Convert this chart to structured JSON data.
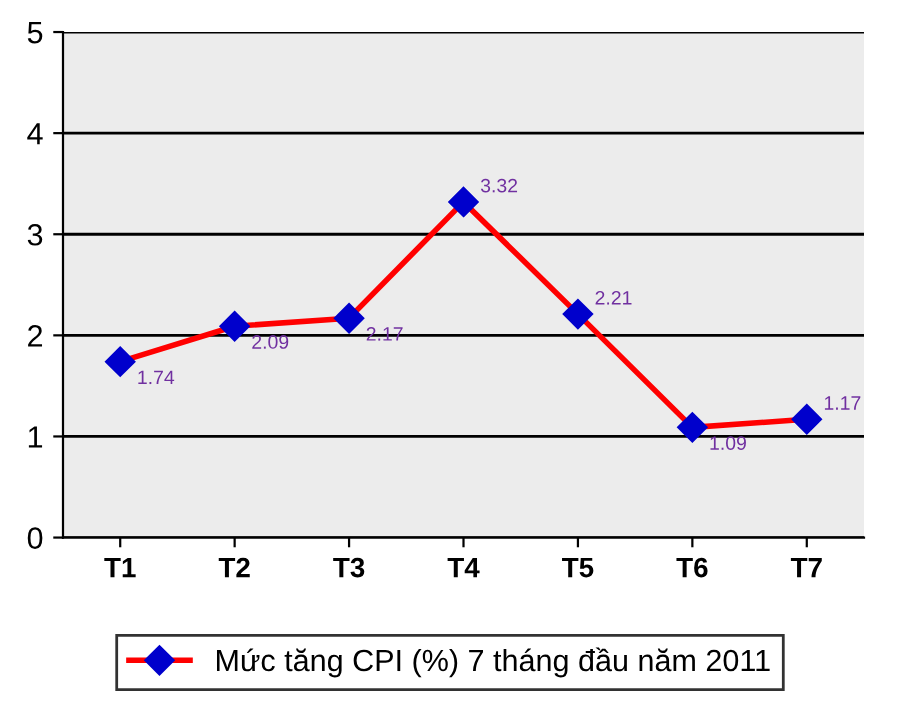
{
  "chart_data": {
    "type": "line",
    "categories": [
      "T1",
      "T2",
      "T3",
      "T4",
      "T5",
      "T6",
      "T7"
    ],
    "series": [
      {
        "name": "Mức tăng CPI (%) 7 tháng đầu năm 2011",
        "color": "#ff0000",
        "values": [
          1.74,
          2.09,
          2.17,
          3.32,
          2.21,
          1.09,
          1.17
        ]
      }
    ],
    "ylim": [
      0,
      5
    ],
    "yticks": [
      0,
      1,
      2,
      3,
      4,
      5
    ],
    "grid": "y",
    "legend": "bottom",
    "marker": "diamond",
    "line_style": "solid",
    "data_labels": true
  }
}
